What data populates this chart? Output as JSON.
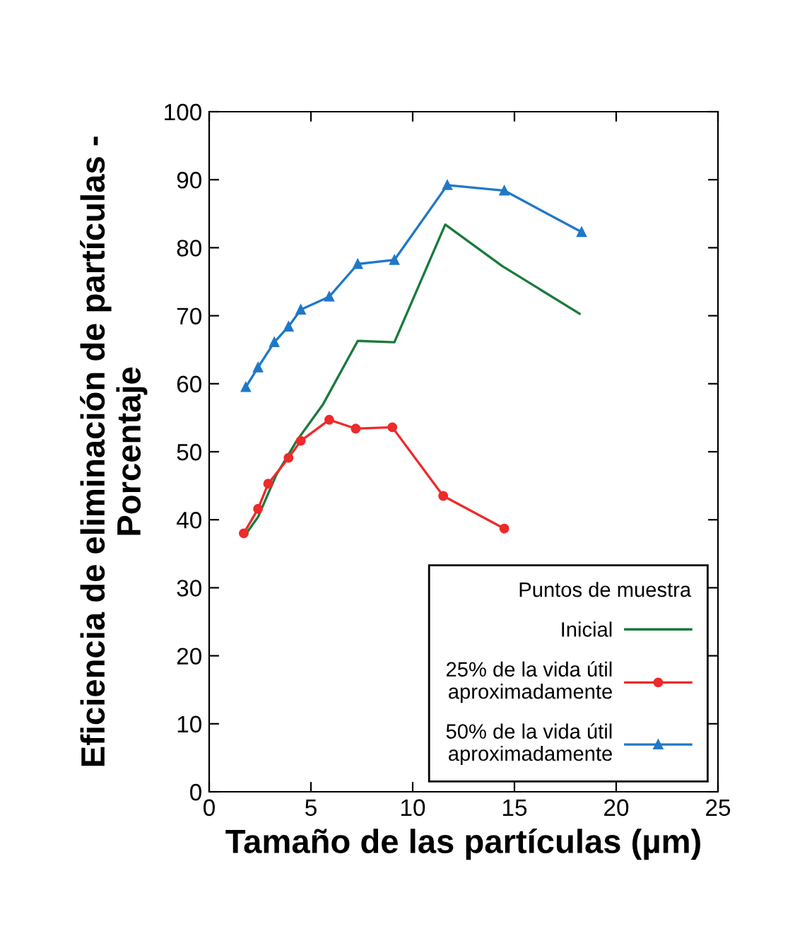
{
  "chart_data": {
    "type": "line",
    "xlabel": "Tamaño de las partículas (µm)",
    "ylabel": "Eficiencia de eliminación de partículas -\nPorcentaje",
    "legend_title": "Puntos de muestra",
    "legend": "bottom right",
    "grid": false,
    "line_style": "solid",
    "xlim": [
      0,
      25
    ],
    "xticks": [
      0,
      5,
      10,
      15,
      20,
      25
    ],
    "ylim": [
      0,
      100
    ],
    "yticks": [
      0,
      10,
      20,
      30,
      40,
      50,
      60,
      70,
      80,
      90,
      100
    ],
    "series": [
      {
        "name": "Inicial",
        "color": "#1a7a3c",
        "marker": "none",
        "x": [
          1.9,
          2.4,
          3.3,
          4.3,
          5.6,
          7.3,
          9.1,
          11.6,
          14.4,
          18.2
        ],
        "values": [
          38.3,
          40.4,
          46.6,
          51.6,
          57,
          66.3,
          66.1,
          83.4,
          77.3,
          70.3
        ]
      },
      {
        "name": "25% de la vida útil\naproximadamente",
        "color": "#ee2a2a",
        "marker": "circle",
        "x": [
          1.7,
          2.4,
          2.9,
          3.9,
          4.5,
          5.9,
          7.2,
          9.0,
          11.5,
          14.5
        ],
        "values": [
          38.0,
          41.6,
          45.3,
          49.1,
          51.6,
          54.7,
          53.4,
          53.6,
          43.5,
          38.7
        ]
      },
      {
        "name": "50% de la vida útil\naproximadamente",
        "color": "#1f78c8",
        "marker": "triangle",
        "x": [
          1.8,
          2.4,
          3.2,
          3.9,
          4.5,
          5.9,
          7.3,
          9.1,
          11.7,
          14.5,
          18.3
        ],
        "values": [
          59.5,
          62.4,
          66.1,
          68.4,
          70.9,
          72.8,
          77.6,
          78.2,
          89.2,
          88.4,
          82.3
        ]
      }
    ]
  }
}
